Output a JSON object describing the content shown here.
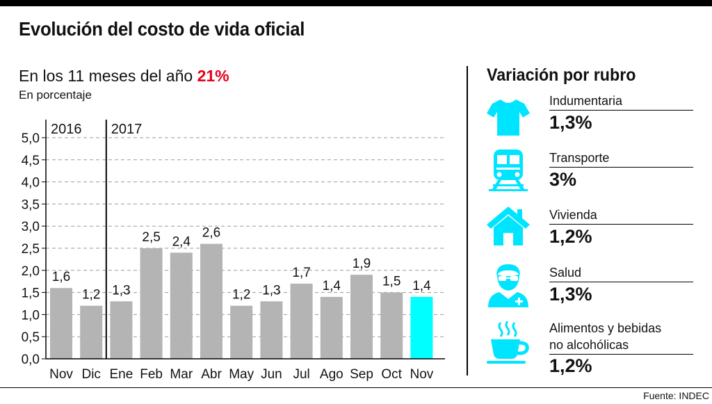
{
  "header": {
    "title": "Evolución del costo de vida oficial",
    "subtitle_prefix": "En los 11 meses del año ",
    "subtitle_highlight": "21%",
    "unit_note": "En porcentaje"
  },
  "colors": {
    "bar": "#b4b4b4",
    "bar_highlight": "#00ffff",
    "highlight_text": "#e3001b",
    "icon": "#00e5ff"
  },
  "chart_data": {
    "type": "bar",
    "title": "",
    "xlabel": "",
    "ylabel": "",
    "ylim": [
      0,
      5
    ],
    "yticks": [
      "0,0",
      "0,5",
      "1,0",
      "1,5",
      "2,0",
      "2,5",
      "3,0",
      "3,5",
      "4,0",
      "4,5",
      "5,0"
    ],
    "grid": true,
    "year_groups": [
      {
        "label": "2016",
        "start_index": 0
      },
      {
        "label": "2017",
        "start_index": 2
      }
    ],
    "categories": [
      "Nov",
      "Dic",
      "Ene",
      "Feb",
      "Mar",
      "Abr",
      "May",
      "Jun",
      "Jul",
      "Ago",
      "Sep",
      "Oct",
      "Nov"
    ],
    "values": [
      1.6,
      1.2,
      1.3,
      2.5,
      2.4,
      2.6,
      1.2,
      1.3,
      1.7,
      1.4,
      1.9,
      1.5,
      1.4
    ],
    "value_labels": [
      "1,6",
      "1,2",
      "1,3",
      "2,5",
      "2,4",
      "2,6",
      "1,2",
      "1,3",
      "1,7",
      "1,4",
      "1,9",
      "1,5",
      "1,4"
    ],
    "highlight_index": 12
  },
  "sidebar": {
    "title": "Variación por rubro",
    "items": [
      {
        "icon": "tshirt-icon",
        "label": "Indumentaria",
        "value": "1,3%"
      },
      {
        "icon": "train-icon",
        "label": "Transporte",
        "value": "3%"
      },
      {
        "icon": "house-icon",
        "label": "Vivienda",
        "value": "1,2%"
      },
      {
        "icon": "doctor-icon",
        "label": "Salud",
        "value": "1,3%"
      },
      {
        "icon": "coffee-cup-icon",
        "label": "Alimentos y bebidas",
        "label_line2": "no alcohólicas",
        "value": "1,2%"
      }
    ]
  },
  "footer": {
    "source": "Fuente: INDEC"
  }
}
